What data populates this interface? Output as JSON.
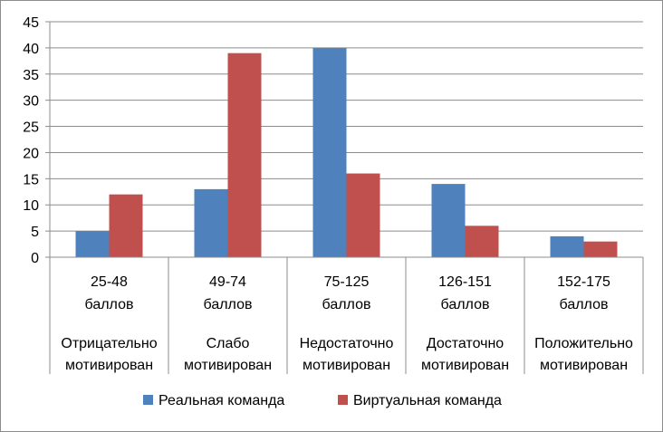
{
  "chart_data": {
    "type": "bar",
    "title": "",
    "xlabel": "",
    "ylabel": "",
    "ylim": [
      0,
      45
    ],
    "yticks": [
      0,
      5,
      10,
      15,
      20,
      25,
      30,
      35,
      40,
      45
    ],
    "grid": true,
    "legend_position": "bottom",
    "categories": [
      {
        "range": "25-48",
        "unit": "баллов",
        "label": [
          "Отрицательно",
          "мотивирован"
        ]
      },
      {
        "range": "49-74",
        "unit": "баллов",
        "label": [
          "Слабо",
          "мотивирован"
        ]
      },
      {
        "range": "75-125",
        "unit": "баллов",
        "label": [
          "Недостаточно",
          "мотивирован"
        ]
      },
      {
        "range": "126-151",
        "unit": "баллов",
        "label": [
          "Достаточно",
          "мотивирован"
        ]
      },
      {
        "range": "152-175",
        "unit": "баллов",
        "label": [
          "Положительно",
          "мотивирован"
        ]
      }
    ],
    "series": [
      {
        "name": "Реальная команда",
        "color": "#4f81bd",
        "values": [
          5,
          13,
          40,
          14,
          4
        ]
      },
      {
        "name": "Виртуальная команда",
        "color": "#c0504d",
        "values": [
          12,
          39,
          16,
          6,
          3
        ]
      }
    ]
  }
}
